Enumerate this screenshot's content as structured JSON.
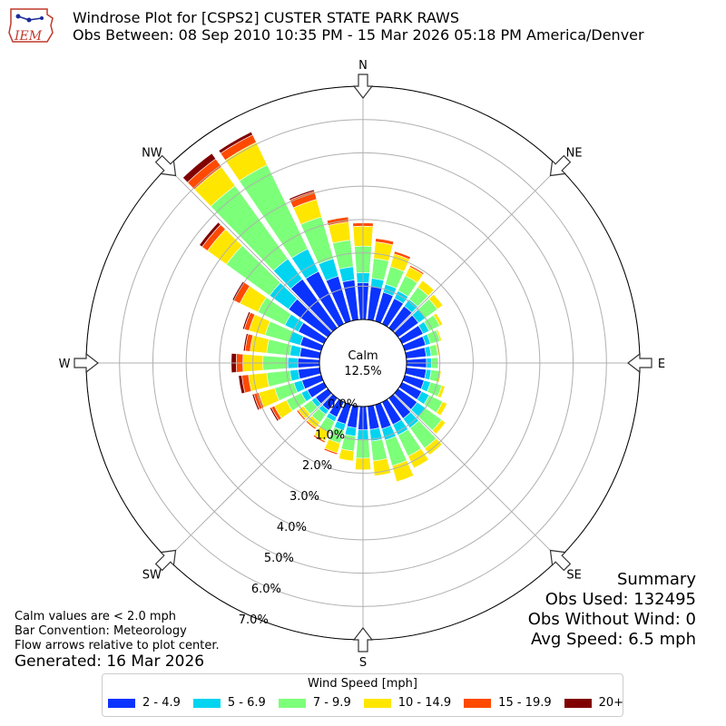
{
  "header": {
    "logo_text": "IEM",
    "title_line1": "Windrose Plot for [CSPS2] CUSTER STATE PARK RAWS",
    "title_line2": "Obs Between: 08 Sep 2010 10:35 PM - 15 Mar 2026 05:18 PM America/Denver"
  },
  "summary": {
    "heading": "Summary",
    "obs_used": "Obs Used: 132495",
    "obs_without_wind": "Obs Without Wind: 0",
    "avg_speed": "Avg Speed: 6.5 mph"
  },
  "notes": {
    "calm_note": "Calm values are < 2.0 mph",
    "bar_convention": "Bar Convention: Meteorology",
    "flow_arrows": "Flow arrows relative to plot center.",
    "generated": "Generated: 16 Mar 2026"
  },
  "legend": {
    "title": "Wind Speed [mph]",
    "items": [
      {
        "label": "2 - 4.9",
        "color": "#0a33ff"
      },
      {
        "label": "5 - 6.9",
        "color": "#00d4f0"
      },
      {
        "label": "7 - 9.9",
        "color": "#7cff79"
      },
      {
        "label": "10 - 14.9",
        "color": "#ffe600"
      },
      {
        "label": "15 - 19.9",
        "color": "#ff4a00"
      },
      {
        "label": "20+",
        "color": "#800000"
      }
    ]
  },
  "chart_data": {
    "type": "windrose",
    "title": "Windrose Plot for [CSPS2] CUSTER STATE PARK RAWS",
    "calm_label": "Calm",
    "calm_value": "12.5%",
    "directions": [
      "N",
      "NE",
      "E",
      "SE",
      "S",
      "SW",
      "W",
      "NW"
    ],
    "radial_ticks": [
      "0.0%",
      "1.0%",
      "2.0%",
      "3.0%",
      "4.0%",
      "5.0%",
      "6.0%",
      "7.0%"
    ],
    "rlim": [
      0,
      7.0
    ],
    "bins": [
      "2 - 4.9",
      "5 - 6.9",
      "7 - 9.9",
      "10 - 14.9",
      "15 - 19.9",
      "20+"
    ],
    "sectors": [
      {
        "dir": 0,
        "values": [
          1.1,
          0.3,
          0.8,
          0.6,
          0.1,
          0.0
        ]
      },
      {
        "dir": 10,
        "values": [
          1.0,
          0.25,
          0.6,
          0.5,
          0.1,
          0.0
        ]
      },
      {
        "dir": 20,
        "values": [
          0.9,
          0.25,
          0.55,
          0.4,
          0.08,
          0.0
        ]
      },
      {
        "dir": 30,
        "values": [
          0.85,
          0.25,
          0.5,
          0.3,
          0.05,
          0.0
        ]
      },
      {
        "dir": 40,
        "values": [
          0.8,
          0.25,
          0.45,
          0.25,
          0.0,
          0.0
        ]
      },
      {
        "dir": 50,
        "values": [
          0.75,
          0.25,
          0.45,
          0.2,
          0.0,
          0.0
        ]
      },
      {
        "dir": 60,
        "values": [
          0.7,
          0.2,
          0.35,
          0.1,
          0.0,
          0.0
        ]
      },
      {
        "dir": 70,
        "values": [
          0.65,
          0.15,
          0.3,
          0.05,
          0.0,
          0.0
        ]
      },
      {
        "dir": 80,
        "values": [
          0.6,
          0.15,
          0.2,
          0.05,
          0.0,
          0.0
        ]
      },
      {
        "dir": 90,
        "values": [
          0.6,
          0.15,
          0.2,
          0.0,
          0.0,
          0.0
        ]
      },
      {
        "dir": 100,
        "values": [
          0.6,
          0.15,
          0.25,
          0.05,
          0.0,
          0.0
        ]
      },
      {
        "dir": 110,
        "values": [
          0.6,
          0.2,
          0.35,
          0.1,
          0.0,
          0.0
        ]
      },
      {
        "dir": 120,
        "values": [
          0.65,
          0.25,
          0.45,
          0.15,
          0.0,
          0.0
        ]
      },
      {
        "dir": 130,
        "values": [
          0.7,
          0.3,
          0.6,
          0.15,
          0.0,
          0.0
        ]
      },
      {
        "dir": 140,
        "values": [
          0.75,
          0.35,
          0.75,
          0.25,
          0.0,
          0.0
        ]
      },
      {
        "dir": 150,
        "values": [
          0.75,
          0.35,
          0.7,
          0.4,
          0.0,
          0.0
        ]
      },
      {
        "dir": 160,
        "values": [
          0.75,
          0.35,
          0.8,
          0.5,
          0.0,
          0.0
        ]
      },
      {
        "dir": 170,
        "values": [
          0.7,
          0.35,
          0.6,
          0.45,
          0.0,
          0.0
        ]
      },
      {
        "dir": 180,
        "values": [
          0.7,
          0.3,
          0.55,
          0.35,
          0.0,
          0.0
        ]
      },
      {
        "dir": 190,
        "values": [
          0.65,
          0.25,
          0.45,
          0.3,
          0.0,
          0.0
        ]
      },
      {
        "dir": 200,
        "values": [
          0.6,
          0.2,
          0.4,
          0.3,
          0.05,
          0.0
        ]
      },
      {
        "dir": 210,
        "values": [
          0.5,
          0.15,
          0.35,
          0.3,
          0.05,
          0.0
        ]
      },
      {
        "dir": 220,
        "values": [
          0.45,
          0.15,
          0.3,
          0.2,
          0.05,
          0.0
        ]
      },
      {
        "dir": 230,
        "values": [
          0.45,
          0.15,
          0.3,
          0.2,
          0.05,
          0.0
        ]
      },
      {
        "dir": 240,
        "values": [
          0.55,
          0.2,
          0.5,
          0.4,
          0.1,
          0.05
        ]
      },
      {
        "dir": 250,
        "values": [
          0.6,
          0.25,
          0.6,
          0.5,
          0.15,
          0.05
        ]
      },
      {
        "dir": 260,
        "values": [
          0.65,
          0.25,
          0.7,
          0.55,
          0.2,
          0.1
        ]
      },
      {
        "dir": 270,
        "values": [
          0.65,
          0.3,
          0.75,
          0.6,
          0.2,
          0.15
        ]
      },
      {
        "dir": 280,
        "values": [
          0.6,
          0.3,
          0.7,
          0.5,
          0.15,
          0.05
        ]
      },
      {
        "dir": 290,
        "values": [
          0.65,
          0.35,
          0.75,
          0.5,
          0.15,
          0.05
        ]
      },
      {
        "dir": 300,
        "values": [
          0.85,
          0.45,
          0.9,
          0.6,
          0.2,
          0.05
        ]
      },
      {
        "dir": 310,
        "values": [
          1.45,
          0.7,
          1.6,
          0.7,
          0.2,
          0.1
        ]
      },
      {
        "dir": 320,
        "values": [
          1.8,
          0.75,
          2.7,
          0.7,
          0.3,
          0.2
        ]
      },
      {
        "dir": 330,
        "values": [
          1.75,
          0.75,
          2.8,
          0.75,
          0.25,
          0.1
        ]
      },
      {
        "dir": 340,
        "values": [
          1.4,
          0.55,
          1.3,
          0.55,
          0.25,
          0.05
        ]
      },
      {
        "dir": 350,
        "values": [
          1.2,
          0.4,
          0.8,
          0.55,
          0.15,
          0.0
        ]
      }
    ]
  }
}
